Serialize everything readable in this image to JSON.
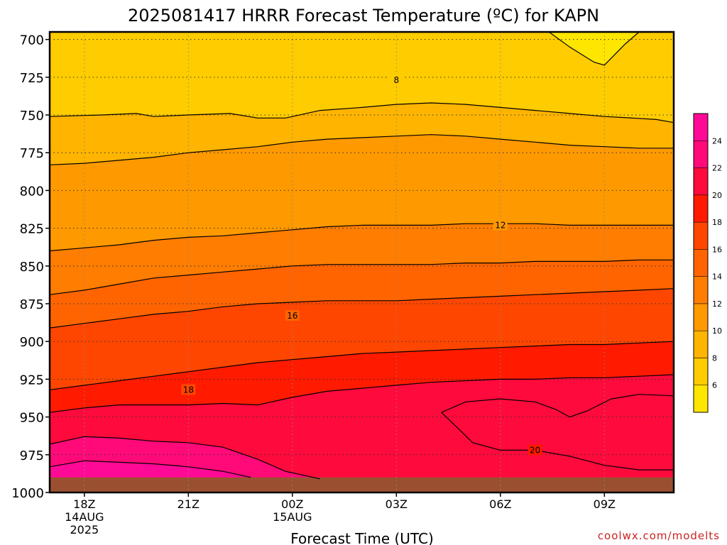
{
  "chart_data": {
    "type": "heatmap",
    "title": "2025081417 HRRR Forecast Temperature (ºC) for KAPN",
    "xlabel": "Forecast Time (UTC)",
    "ylabel": "",
    "credit": "coolwx.com/modelts",
    "x_ticks": [
      {
        "hour": 0,
        "lines": [
          "18Z",
          "14AUG",
          "2025"
        ]
      },
      {
        "hour": 3,
        "lines": [
          "21Z"
        ]
      },
      {
        "hour": 6,
        "lines": [
          "00Z",
          "15AUG"
        ]
      },
      {
        "hour": 9,
        "lines": [
          "03Z"
        ]
      },
      {
        "hour": 12,
        "lines": [
          "06Z"
        ]
      },
      {
        "hour": 15,
        "lines": [
          "09Z"
        ]
      }
    ],
    "y_ticks": [
      700,
      725,
      750,
      775,
      800,
      825,
      850,
      875,
      900,
      925,
      950,
      975,
      1000
    ],
    "xlim_hours": [
      -1,
      17
    ],
    "ylim_hpa": [
      695,
      1000
    ],
    "y_scale": "linear, pressure increasing downward",
    "grid": "dotted",
    "surface_pressure_hpa": 990,
    "colorbar": {
      "min": 4,
      "max": 26,
      "labels": [
        6,
        8,
        10,
        12,
        14,
        16,
        18,
        20,
        22,
        24
      ],
      "bins": [
        {
          "from": 4,
          "to": 6,
          "color": "#FFE600"
        },
        {
          "from": 6,
          "to": 8,
          "color": "#FFCC00"
        },
        {
          "from": 8,
          "to": 10,
          "color": "#FFB400"
        },
        {
          "from": 10,
          "to": 12,
          "color": "#FF9900"
        },
        {
          "from": 12,
          "to": 14,
          "color": "#FF7D00"
        },
        {
          "from": 14,
          "to": 16,
          "color": "#FF6400"
        },
        {
          "from": 16,
          "to": 18,
          "color": "#FF4600"
        },
        {
          "from": 18,
          "to": 20,
          "color": "#FF1A00"
        },
        {
          "from": 20,
          "to": 22,
          "color": "#FF0A3C"
        },
        {
          "from": 22,
          "to": 24,
          "color": "#FF0A78"
        },
        {
          "from": 24,
          "to": 26,
          "color": "#FF0A96"
        }
      ]
    },
    "contour_labels": [
      {
        "value": 8,
        "hour": 9.0,
        "hpa": 727
      },
      {
        "value": 12,
        "hour": 12.0,
        "hpa": 823
      },
      {
        "value": 16,
        "hour": 6.0,
        "hpa": 883
      },
      {
        "value": 18,
        "hour": 3.0,
        "hpa": 932
      },
      {
        "value": 20,
        "hour": 13.0,
        "hpa": 972
      }
    ],
    "contours": [
      {
        "value": 6,
        "points": [
          [
            13.4,
            695
          ],
          [
            14.0,
            705
          ],
          [
            14.7,
            715
          ],
          [
            15.0,
            717
          ],
          [
            15.6,
            703
          ],
          [
            16.0,
            695
          ]
        ]
      },
      {
        "value": 8,
        "points": [
          [
            -1.0,
            751
          ],
          [
            0.5,
            750
          ],
          [
            1.5,
            749
          ],
          [
            2.0,
            751
          ],
          [
            3.0,
            750
          ],
          [
            4.2,
            749
          ],
          [
            5.0,
            752
          ],
          [
            5.8,
            752
          ],
          [
            6.8,
            747
          ],
          [
            8.0,
            745
          ],
          [
            9.0,
            743
          ],
          [
            10.0,
            742
          ],
          [
            11.0,
            743
          ],
          [
            12.0,
            745
          ],
          [
            13.0,
            747
          ],
          [
            14.0,
            749
          ],
          [
            15.0,
            751
          ],
          [
            15.8,
            752
          ],
          [
            16.5,
            753
          ],
          [
            17.0,
            755
          ]
        ]
      },
      {
        "value": 10,
        "points": [
          [
            -1.0,
            783
          ],
          [
            0.0,
            782
          ],
          [
            1.0,
            780
          ],
          [
            2.0,
            778
          ],
          [
            3.0,
            775
          ],
          [
            4.0,
            773
          ],
          [
            5.0,
            771
          ],
          [
            6.0,
            768
          ],
          [
            7.0,
            766
          ],
          [
            8.0,
            765
          ],
          [
            9.0,
            764
          ],
          [
            10.0,
            763
          ],
          [
            11.0,
            764
          ],
          [
            12.0,
            766
          ],
          [
            13.0,
            768
          ],
          [
            14.0,
            770
          ],
          [
            15.0,
            771
          ],
          [
            16.0,
            772
          ],
          [
            17.0,
            772
          ]
        ]
      },
      {
        "value": 12,
        "points": [
          [
            -1.0,
            840
          ],
          [
            0.0,
            838
          ],
          [
            1.0,
            836
          ],
          [
            2.0,
            833
          ],
          [
            3.0,
            831
          ],
          [
            4.0,
            830
          ],
          [
            5.0,
            828
          ],
          [
            6.0,
            826
          ],
          [
            7.0,
            824
          ],
          [
            8.0,
            823
          ],
          [
            9.0,
            823
          ],
          [
            10.0,
            823
          ],
          [
            11.0,
            822
          ],
          [
            12.0,
            822
          ],
          [
            13.0,
            822
          ],
          [
            14.0,
            823
          ],
          [
            15.0,
            823
          ],
          [
            16.0,
            823
          ],
          [
            17.0,
            823
          ]
        ]
      },
      {
        "value": 14,
        "points": [
          [
            -1.0,
            869
          ],
          [
            0.0,
            866
          ],
          [
            1.0,
            862
          ],
          [
            2.0,
            858
          ],
          [
            3.0,
            856
          ],
          [
            4.0,
            854
          ],
          [
            5.0,
            852
          ],
          [
            6.0,
            850
          ],
          [
            7.0,
            849
          ],
          [
            8.0,
            849
          ],
          [
            9.0,
            849
          ],
          [
            10.0,
            849
          ],
          [
            11.0,
            848
          ],
          [
            12.0,
            848
          ],
          [
            13.0,
            847
          ],
          [
            14.0,
            847
          ],
          [
            15.0,
            847
          ],
          [
            16.0,
            846
          ],
          [
            17.0,
            846
          ]
        ]
      },
      {
        "value": 16,
        "points": [
          [
            -1.0,
            891
          ],
          [
            0.0,
            888
          ],
          [
            1.0,
            885
          ],
          [
            2.0,
            882
          ],
          [
            3.0,
            880
          ],
          [
            4.0,
            877
          ],
          [
            5.0,
            875
          ],
          [
            6.0,
            874
          ],
          [
            7.0,
            873
          ],
          [
            8.0,
            873
          ],
          [
            9.0,
            873
          ],
          [
            10.0,
            872
          ],
          [
            11.0,
            871
          ],
          [
            12.0,
            870
          ],
          [
            13.0,
            869
          ],
          [
            14.0,
            868
          ],
          [
            15.0,
            867
          ],
          [
            16.0,
            866
          ],
          [
            17.0,
            865
          ]
        ]
      },
      {
        "value": 18,
        "points": [
          [
            -1.0,
            932
          ],
          [
            0.0,
            929
          ],
          [
            1.0,
            926
          ],
          [
            2.0,
            923
          ],
          [
            3.0,
            920
          ],
          [
            4.0,
            917
          ],
          [
            5.0,
            914
          ],
          [
            6.0,
            912
          ],
          [
            7.0,
            910
          ],
          [
            8.0,
            908
          ],
          [
            9.0,
            907
          ],
          [
            10.0,
            906
          ],
          [
            11.0,
            905
          ],
          [
            12.0,
            904
          ],
          [
            13.0,
            903
          ],
          [
            14.0,
            902
          ],
          [
            15.0,
            902
          ],
          [
            16.0,
            901
          ],
          [
            17.0,
            900
          ]
        ]
      },
      {
        "value": 20,
        "points": [
          [
            -1.0,
            947
          ],
          [
            0.0,
            944
          ],
          [
            1.0,
            942
          ],
          [
            2.0,
            942
          ],
          [
            3.0,
            942
          ],
          [
            4.0,
            941
          ],
          [
            5.0,
            942
          ],
          [
            6.0,
            937
          ],
          [
            7.0,
            933
          ],
          [
            8.0,
            931
          ],
          [
            9.0,
            929
          ],
          [
            10.0,
            927
          ],
          [
            11.0,
            926
          ],
          [
            12.0,
            925
          ],
          [
            13.0,
            925
          ],
          [
            14.0,
            924
          ],
          [
            15.0,
            924
          ],
          [
            16.0,
            923
          ],
          [
            17.0,
            922
          ]
        ]
      },
      {
        "value": 22,
        "points": [
          [
            -1.0,
            968
          ],
          [
            0.0,
            963
          ],
          [
            1.0,
            964
          ],
          [
            2.0,
            966
          ],
          [
            3.0,
            967
          ],
          [
            4.0,
            970
          ],
          [
            5.0,
            978
          ],
          [
            5.8,
            986
          ],
          [
            6.8,
            991
          ]
        ]
      },
      {
        "value": 24,
        "points": [
          [
            -1.0,
            983
          ],
          [
            0.0,
            979
          ],
          [
            1.0,
            980
          ],
          [
            2.0,
            981
          ],
          [
            3.0,
            983
          ],
          [
            4.0,
            986
          ],
          [
            4.8,
            990
          ]
        ]
      }
    ]
  }
}
